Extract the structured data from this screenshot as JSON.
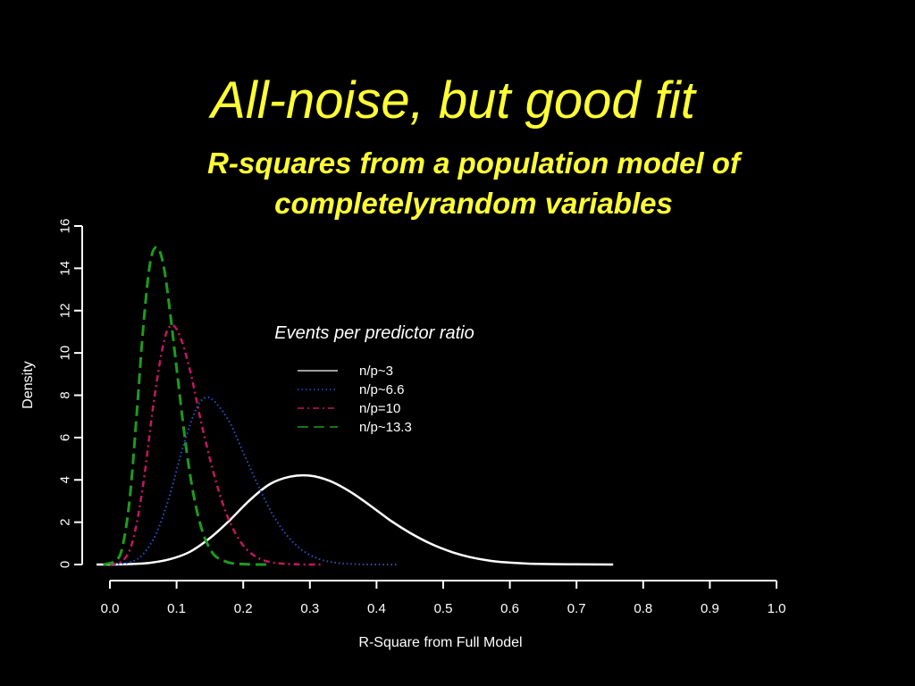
{
  "slide": {
    "title": "All-noise, but good fit",
    "subtitle_line1": "R-squares from a population model of",
    "subtitle_line2": "completelyrandom variables"
  },
  "colors": {
    "background": "#000000",
    "title": "#ffff33",
    "axis": "#ffffff",
    "text": "#ffffff"
  },
  "chart_data": {
    "type": "line",
    "title": "",
    "xlabel": "R-Square from Full Model",
    "ylabel": "Density",
    "xlim": [
      0.0,
      1.0
    ],
    "ylim": [
      0,
      16
    ],
    "xticks": [
      "0.0",
      "0.1",
      "0.2",
      "0.3",
      "0.4",
      "0.5",
      "0.6",
      "0.7",
      "0.8",
      "0.9",
      "1.0"
    ],
    "yticks": [
      "0",
      "2",
      "4",
      "6",
      "8",
      "10",
      "12",
      "14",
      "16"
    ],
    "grid": false,
    "legend": {
      "title": "Events per predictor ratio",
      "placement": "center-right"
    },
    "series": [
      {
        "name": "n/p~3",
        "color": "#ffffff",
        "dash": "solid",
        "x": [
          -0.02,
          0.0,
          0.03,
          0.06,
          0.09,
          0.12,
          0.15,
          0.18,
          0.21,
          0.24,
          0.27,
          0.3,
          0.33,
          0.36,
          0.39,
          0.42,
          0.45,
          0.48,
          0.51,
          0.54,
          0.57,
          0.6,
          0.63,
          0.66,
          0.7,
          0.755
        ],
        "y": [
          0.0,
          0.0,
          0.02,
          0.08,
          0.25,
          0.6,
          1.25,
          2.1,
          3.05,
          3.8,
          4.15,
          4.2,
          3.95,
          3.45,
          2.8,
          2.1,
          1.5,
          1.0,
          0.62,
          0.35,
          0.18,
          0.09,
          0.04,
          0.02,
          0.01,
          0.0
        ]
      },
      {
        "name": "n/p~6.6",
        "color": "#2a52c8",
        "dash": "dotted",
        "x": [
          0.0,
          0.03,
          0.05,
          0.07,
          0.09,
          0.11,
          0.13,
          0.145,
          0.16,
          0.18,
          0.2,
          0.22,
          0.24,
          0.26,
          0.28,
          0.3,
          0.32,
          0.34,
          0.36,
          0.39,
          0.43
        ],
        "y": [
          0.0,
          0.1,
          0.5,
          1.5,
          3.3,
          5.6,
          7.4,
          7.9,
          7.6,
          6.7,
          5.3,
          3.9,
          2.6,
          1.6,
          0.9,
          0.45,
          0.2,
          0.08,
          0.03,
          0.0,
          0.0
        ]
      },
      {
        "name": "n/p=10",
        "color": "#c01860",
        "dash": "dashdot",
        "x": [
          0.0,
          0.02,
          0.035,
          0.05,
          0.065,
          0.08,
          0.092,
          0.105,
          0.12,
          0.135,
          0.15,
          0.165,
          0.18,
          0.2,
          0.22,
          0.24,
          0.26,
          0.28,
          0.3,
          0.32
        ],
        "y": [
          0.0,
          0.2,
          1.2,
          3.8,
          7.5,
          10.4,
          11.3,
          10.8,
          9.2,
          7.0,
          5.0,
          3.3,
          2.0,
          0.9,
          0.35,
          0.12,
          0.04,
          0.01,
          0.0,
          0.0
        ]
      },
      {
        "name": "n/p~13.3",
        "color": "#1f9a1f",
        "dash": "dashed",
        "x": [
          -0.01,
          0.01,
          0.02,
          0.03,
          0.04,
          0.05,
          0.06,
          0.07,
          0.08,
          0.09,
          0.1,
          0.11,
          0.12,
          0.13,
          0.14,
          0.15,
          0.16,
          0.18,
          0.2,
          0.22,
          0.24
        ],
        "y": [
          0.0,
          0.2,
          1.0,
          3.2,
          7.0,
          11.2,
          14.2,
          15.0,
          14.2,
          12.0,
          9.3,
          6.6,
          4.3,
          2.6,
          1.45,
          0.75,
          0.35,
          0.08,
          0.02,
          0.0,
          0.0
        ]
      }
    ]
  }
}
